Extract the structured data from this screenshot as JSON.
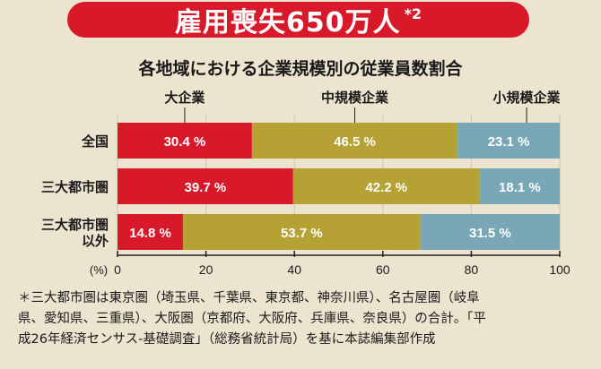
{
  "banner": {
    "title": "雇用喪失650万人",
    "note": "*2"
  },
  "chart_data": {
    "type": "bar",
    "orientation": "horizontal",
    "stacked": true,
    "title": "各地域における企業規模別の従業員数割合",
    "categories": [
      "全国",
      "三大都市圏",
      "三大都市圏以外"
    ],
    "category_lines": [
      [
        "全国"
      ],
      [
        "三大都市圏"
      ],
      [
        "三大都市圏",
        "以外"
      ]
    ],
    "series": [
      {
        "name": "大企業",
        "values": [
          30.4,
          39.7,
          14.8
        ]
      },
      {
        "name": "中規模企業",
        "values": [
          46.5,
          42.2,
          53.7
        ]
      },
      {
        "name": "小規模企業",
        "values": [
          23.1,
          18.1,
          31.5
        ]
      }
    ],
    "unit_suffix": "%",
    "xlabel": "(%)",
    "xlim": [
      0,
      100
    ],
    "xticks": [
      "0",
      "20",
      "40",
      "60",
      "80",
      "100"
    ]
  },
  "colors": {
    "large": "#d8192a",
    "medium": "#b5a134",
    "small": "#7aa7b7",
    "grid": "#cfc6b2",
    "axis": "#222222"
  },
  "footnote": {
    "lines": [
      "＊三大都市圏は東京圏（埼玉県、千葉県、東京都、神奈川県）、名古屋圏（岐阜",
      "県、愛知県、三重県）、大阪圏（京都府、大阪府、兵庫県、奈良県）の合計。「平",
      "成26年経済センサス‐基礎調査」（総務省統計局）を基に本誌編集部作成"
    ]
  }
}
